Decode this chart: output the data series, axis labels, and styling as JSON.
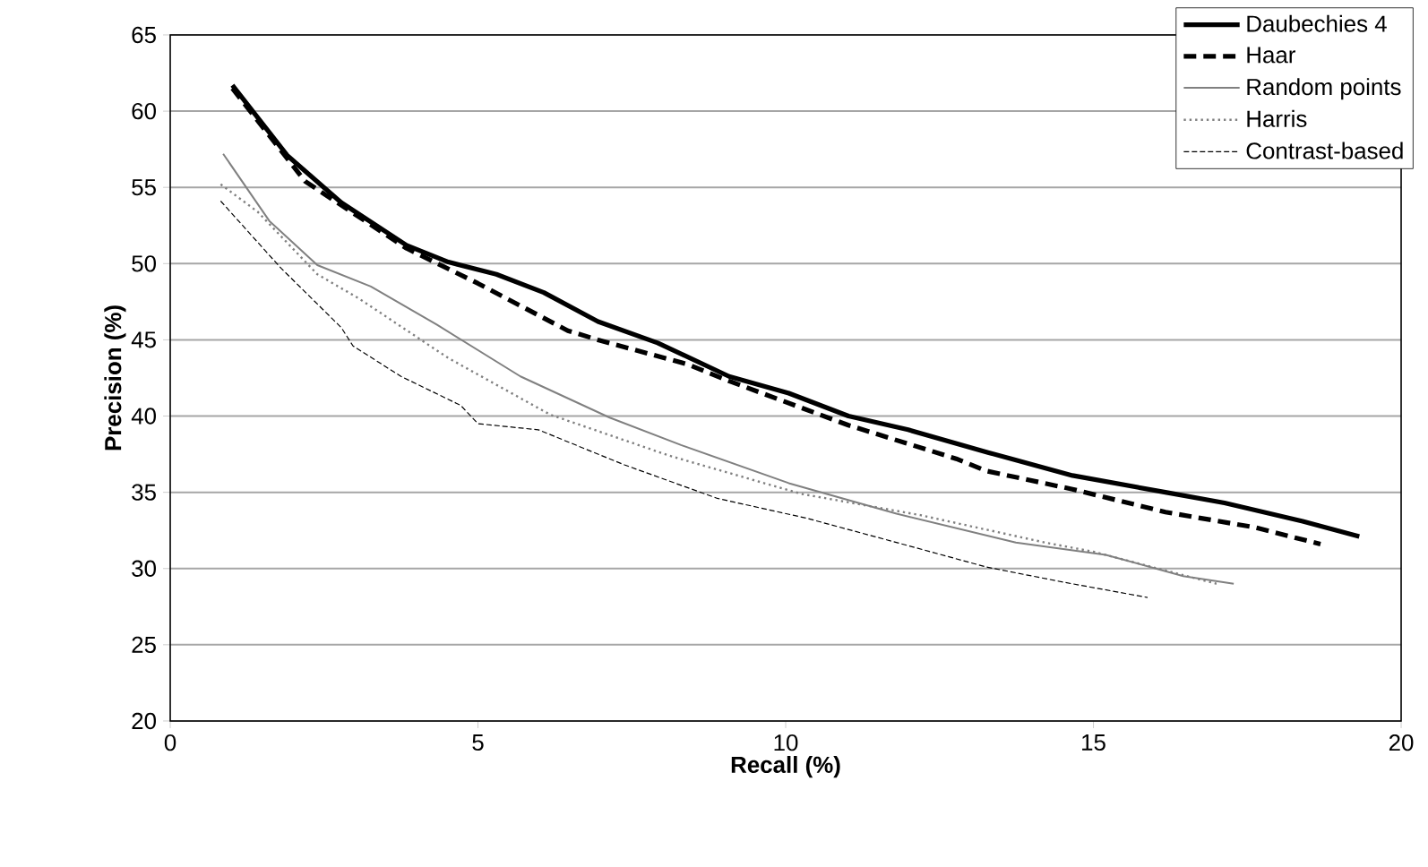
{
  "chart_data": {
    "type": "line",
    "xlabel": "Recall (%)",
    "ylabel": "Precision (%)",
    "xlim": [
      0,
      20
    ],
    "ylim": [
      20,
      65
    ],
    "xticks": [
      0,
      5,
      10,
      15,
      20
    ],
    "yticks": [
      20,
      25,
      30,
      35,
      40,
      45,
      50,
      55,
      60,
      65
    ],
    "grid": "y",
    "legend": "top right",
    "marker": "none",
    "series": [
      {
        "name": "Daubechies 4",
        "color": "#000000",
        "line_style": "solid",
        "x": [
          1.01,
          1.9,
          2.78,
          3.84,
          4.52,
          5.3,
          6.07,
          6.95,
          7.92,
          9.08,
          10.05,
          11.02,
          11.99,
          13.3,
          14.66,
          16.17,
          17.13,
          18.4,
          19.32
        ],
        "values": [
          61.7,
          57.1,
          54.0,
          51.2,
          50.1,
          49.3,
          48.1,
          46.2,
          44.8,
          42.6,
          41.5,
          40.0,
          39.1,
          37.6,
          36.1,
          35.0,
          34.3,
          33.1,
          32.1
        ]
      },
      {
        "name": "Haar",
        "color": "#000000",
        "line_style": "dashed",
        "x": [
          1.01,
          2.19,
          3.84,
          5.0,
          6.46,
          6.95,
          8.4,
          9.08,
          11.02,
          12.77,
          13.26,
          14.66,
          16.17,
          17.62,
          18.69
        ],
        "values": [
          61.5,
          55.4,
          51.0,
          48.7,
          45.6,
          45.0,
          43.4,
          42.3,
          39.4,
          37.2,
          36.4,
          35.2,
          33.7,
          32.7,
          31.6
        ]
      },
      {
        "name": "Random points",
        "color": "#808080",
        "line_style": "solid",
        "x": [
          0.86,
          1.61,
          2.39,
          3.26,
          4.33,
          5.69,
          7.14,
          8.3,
          10.05,
          11.8,
          13.74,
          15.2,
          16.46,
          17.28
        ],
        "values": [
          57.2,
          52.8,
          49.9,
          48.5,
          46.0,
          42.6,
          39.9,
          38.1,
          35.6,
          33.6,
          31.7,
          30.9,
          29.5,
          29.0
        ]
      },
      {
        "name": "Harris",
        "color": "#808080",
        "line_style": "dotted",
        "x": [
          0.82,
          1.42,
          2.39,
          3.07,
          4.52,
          6.17,
          8.11,
          10.25,
          12.19,
          14.22,
          15.0,
          17.0
        ],
        "values": [
          55.2,
          53.4,
          49.3,
          47.7,
          43.8,
          40.1,
          37.4,
          34.9,
          33.5,
          31.7,
          31.1,
          29.0
        ]
      },
      {
        "name": "Contrast-based",
        "color": "#000000",
        "line_style": "dashed",
        "x": [
          0.82,
          1.8,
          2.78,
          2.97,
          3.75,
          4.72,
          5.0,
          5.98,
          7.38,
          8.89,
          10.34,
          11.99,
          13.26,
          14.52,
          15.88
        ],
        "values": [
          54.1,
          49.7,
          45.8,
          44.6,
          42.6,
          40.7,
          39.5,
          39.1,
          36.8,
          34.6,
          33.3,
          31.5,
          30.1,
          29.1,
          28.1
        ]
      }
    ]
  }
}
